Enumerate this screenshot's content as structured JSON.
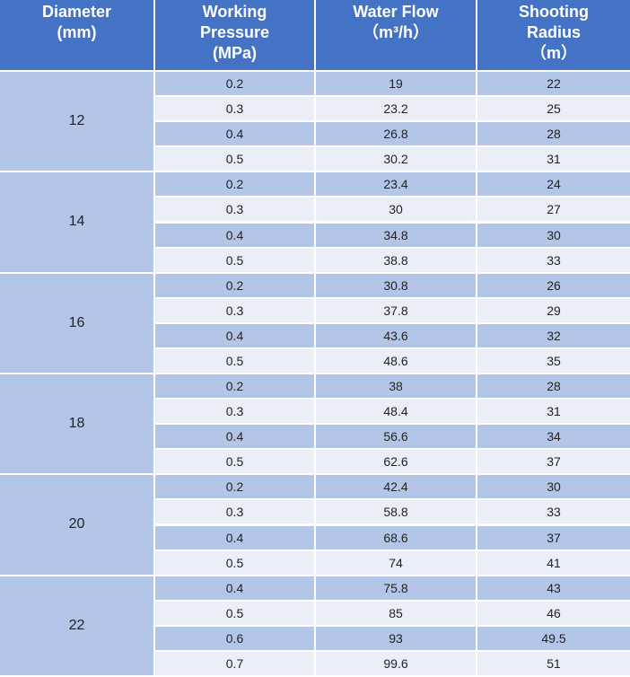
{
  "header": {
    "columns": [
      [
        "Diameter",
        "(mm)"
      ],
      [
        "Working",
        "Pressure",
        "(MPa)"
      ],
      [
        "Water Flow",
        "（m³/h）"
      ],
      [
        "Shooting",
        "Radius",
        "（m）"
      ]
    ]
  },
  "groups": [
    {
      "diameter": "12",
      "rows": [
        [
          "0.2",
          "19",
          "22"
        ],
        [
          "0.3",
          "23.2",
          "25"
        ],
        [
          "0.4",
          "26.8",
          "28"
        ],
        [
          "0.5",
          "30.2",
          "31"
        ]
      ]
    },
    {
      "diameter": "14",
      "rows": [
        [
          "0.2",
          "23.4",
          "24"
        ],
        [
          "0.3",
          "30",
          "27"
        ],
        [
          "0.4",
          "34.8",
          "30"
        ],
        [
          "0.5",
          "38.8",
          "33"
        ]
      ]
    },
    {
      "diameter": "16",
      "rows": [
        [
          "0.2",
          "30.8",
          "26"
        ],
        [
          "0.3",
          "37.8",
          "29"
        ],
        [
          "0.4",
          "43.6",
          "32"
        ],
        [
          "0.5",
          "48.6",
          "35"
        ]
      ]
    },
    {
      "diameter": "18",
      "rows": [
        [
          "0.2",
          "38",
          "28"
        ],
        [
          "0.3",
          "48.4",
          "31"
        ],
        [
          "0.4",
          "56.6",
          "34"
        ],
        [
          "0.5",
          "62.6",
          "37"
        ]
      ]
    },
    {
      "diameter": "20",
      "rows": [
        [
          "0.2",
          "42.4",
          "30"
        ],
        [
          "0.3",
          "58.8",
          "33"
        ],
        [
          "0.4",
          "68.6",
          "37"
        ],
        [
          "0.5",
          "74",
          "41"
        ]
      ]
    },
    {
      "diameter": "22",
      "rows": [
        [
          "0.4",
          "75.8",
          "43"
        ],
        [
          "0.5",
          "85",
          "46"
        ],
        [
          "0.6",
          "93",
          "49.5"
        ],
        [
          "0.7",
          "99.6",
          "51"
        ]
      ]
    }
  ]
}
